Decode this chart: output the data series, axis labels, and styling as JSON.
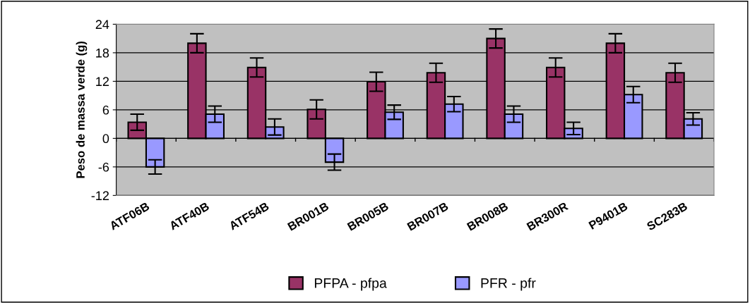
{
  "chart_data": {
    "type": "bar",
    "ylabel": "Peso de massa verde (g)",
    "categories": [
      "ATF06B",
      "ATF40B",
      "ATF54B",
      "BR001B",
      "BR005B",
      "BR007B",
      "BR008B",
      "BR300R",
      "P9401B",
      "SC283B"
    ],
    "series": [
      {
        "name": "PFPA - pfpa",
        "color": "#993366",
        "values": [
          3.4,
          20.0,
          14.9,
          6.1,
          11.9,
          13.8,
          21.0,
          14.9,
          20.0,
          13.8
        ],
        "errors": [
          1.7,
          2,
          2,
          2,
          2,
          2,
          2,
          2,
          2,
          2
        ]
      },
      {
        "name": "PFR - pfr",
        "color": "#9999ff",
        "values": [
          -6.0,
          5.1,
          2.4,
          -5.0,
          5.5,
          7.2,
          5.1,
          2.1,
          9.2,
          4.1
        ],
        "errors": [
          1.5,
          1.7,
          1.7,
          1.7,
          1.5,
          1.6,
          1.7,
          1.3,
          1.7,
          1.3
        ]
      }
    ],
    "ylim": [
      -12,
      24
    ],
    "yticks": [
      -12,
      -6,
      0,
      6,
      12,
      18,
      24
    ],
    "grid": "y",
    "legend": "bottom"
  }
}
